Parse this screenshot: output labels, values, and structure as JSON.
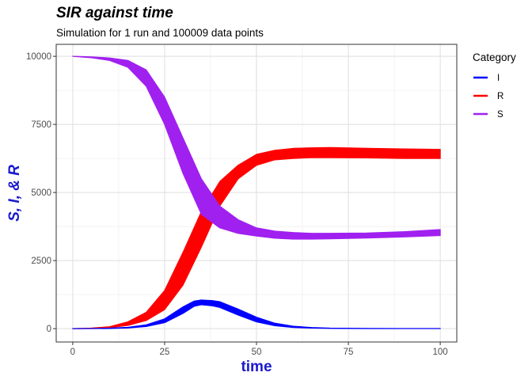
{
  "chart_data": {
    "type": "line",
    "title": "SIR against time",
    "subtitle": "Simulation for 1 run and 100009 data points",
    "xlabel": "time",
    "ylabel": "S, I, & R",
    "xlim": [
      -4.5,
      104.5
    ],
    "ylim": [
      -490,
      10440
    ],
    "x_ticks": [
      0,
      25,
      50,
      75,
      100
    ],
    "x_tick_labels": [
      "0",
      "25",
      "50",
      "75",
      "100"
    ],
    "y_ticks": [
      0,
      2500,
      5000,
      7500,
      10000
    ],
    "y_tick_labels": [
      "0",
      "2500",
      "5000",
      "7500",
      "10000"
    ],
    "grid": true,
    "legend": {
      "title": "Category",
      "position": "right"
    },
    "series": [
      {
        "name": "I",
        "color": "#0000FF",
        "x": [
          0,
          5,
          10,
          15,
          20,
          25,
          30,
          33,
          35,
          38,
          40,
          45,
          50,
          55,
          60,
          65,
          70,
          80,
          90,
          100
        ],
        "lower": [
          0,
          2,
          8,
          25,
          80,
          220,
          560,
          820,
          880,
          840,
          780,
          500,
          250,
          110,
          45,
          20,
          10,
          5,
          3,
          2
        ],
        "upper": [
          0,
          6,
          18,
          50,
          140,
          360,
          800,
          1010,
          1050,
          1030,
          990,
          720,
          420,
          200,
          90,
          40,
          20,
          10,
          6,
          4
        ]
      },
      {
        "name": "R",
        "color": "#FF0000",
        "x": [
          0,
          5,
          10,
          15,
          20,
          25,
          30,
          35,
          40,
          45,
          50,
          55,
          60,
          65,
          70,
          80,
          90,
          100
        ],
        "lower": [
          0,
          10,
          40,
          120,
          300,
          700,
          1600,
          3000,
          4500,
          5500,
          6000,
          6200,
          6250,
          6280,
          6280,
          6270,
          6250,
          6250
        ],
        "upper": [
          0,
          20,
          70,
          250,
          600,
          1400,
          2800,
          4300,
          5400,
          6000,
          6400,
          6550,
          6620,
          6640,
          6650,
          6620,
          6600,
          6580
        ]
      },
      {
        "name": "S",
        "color": "#A020F0",
        "x": [
          0,
          5,
          10,
          15,
          20,
          25,
          30,
          35,
          40,
          45,
          50,
          55,
          60,
          65,
          70,
          80,
          90,
          100
        ],
        "lower": [
          10000,
          9950,
          9850,
          9600,
          8900,
          7500,
          5700,
          4200,
          3700,
          3500,
          3400,
          3320,
          3290,
          3290,
          3300,
          3330,
          3370,
          3420
        ],
        "upper": [
          10000,
          9980,
          9940,
          9850,
          9500,
          8500,
          7000,
          5500,
          4500,
          4000,
          3700,
          3580,
          3530,
          3500,
          3500,
          3510,
          3560,
          3640
        ]
      }
    ]
  }
}
